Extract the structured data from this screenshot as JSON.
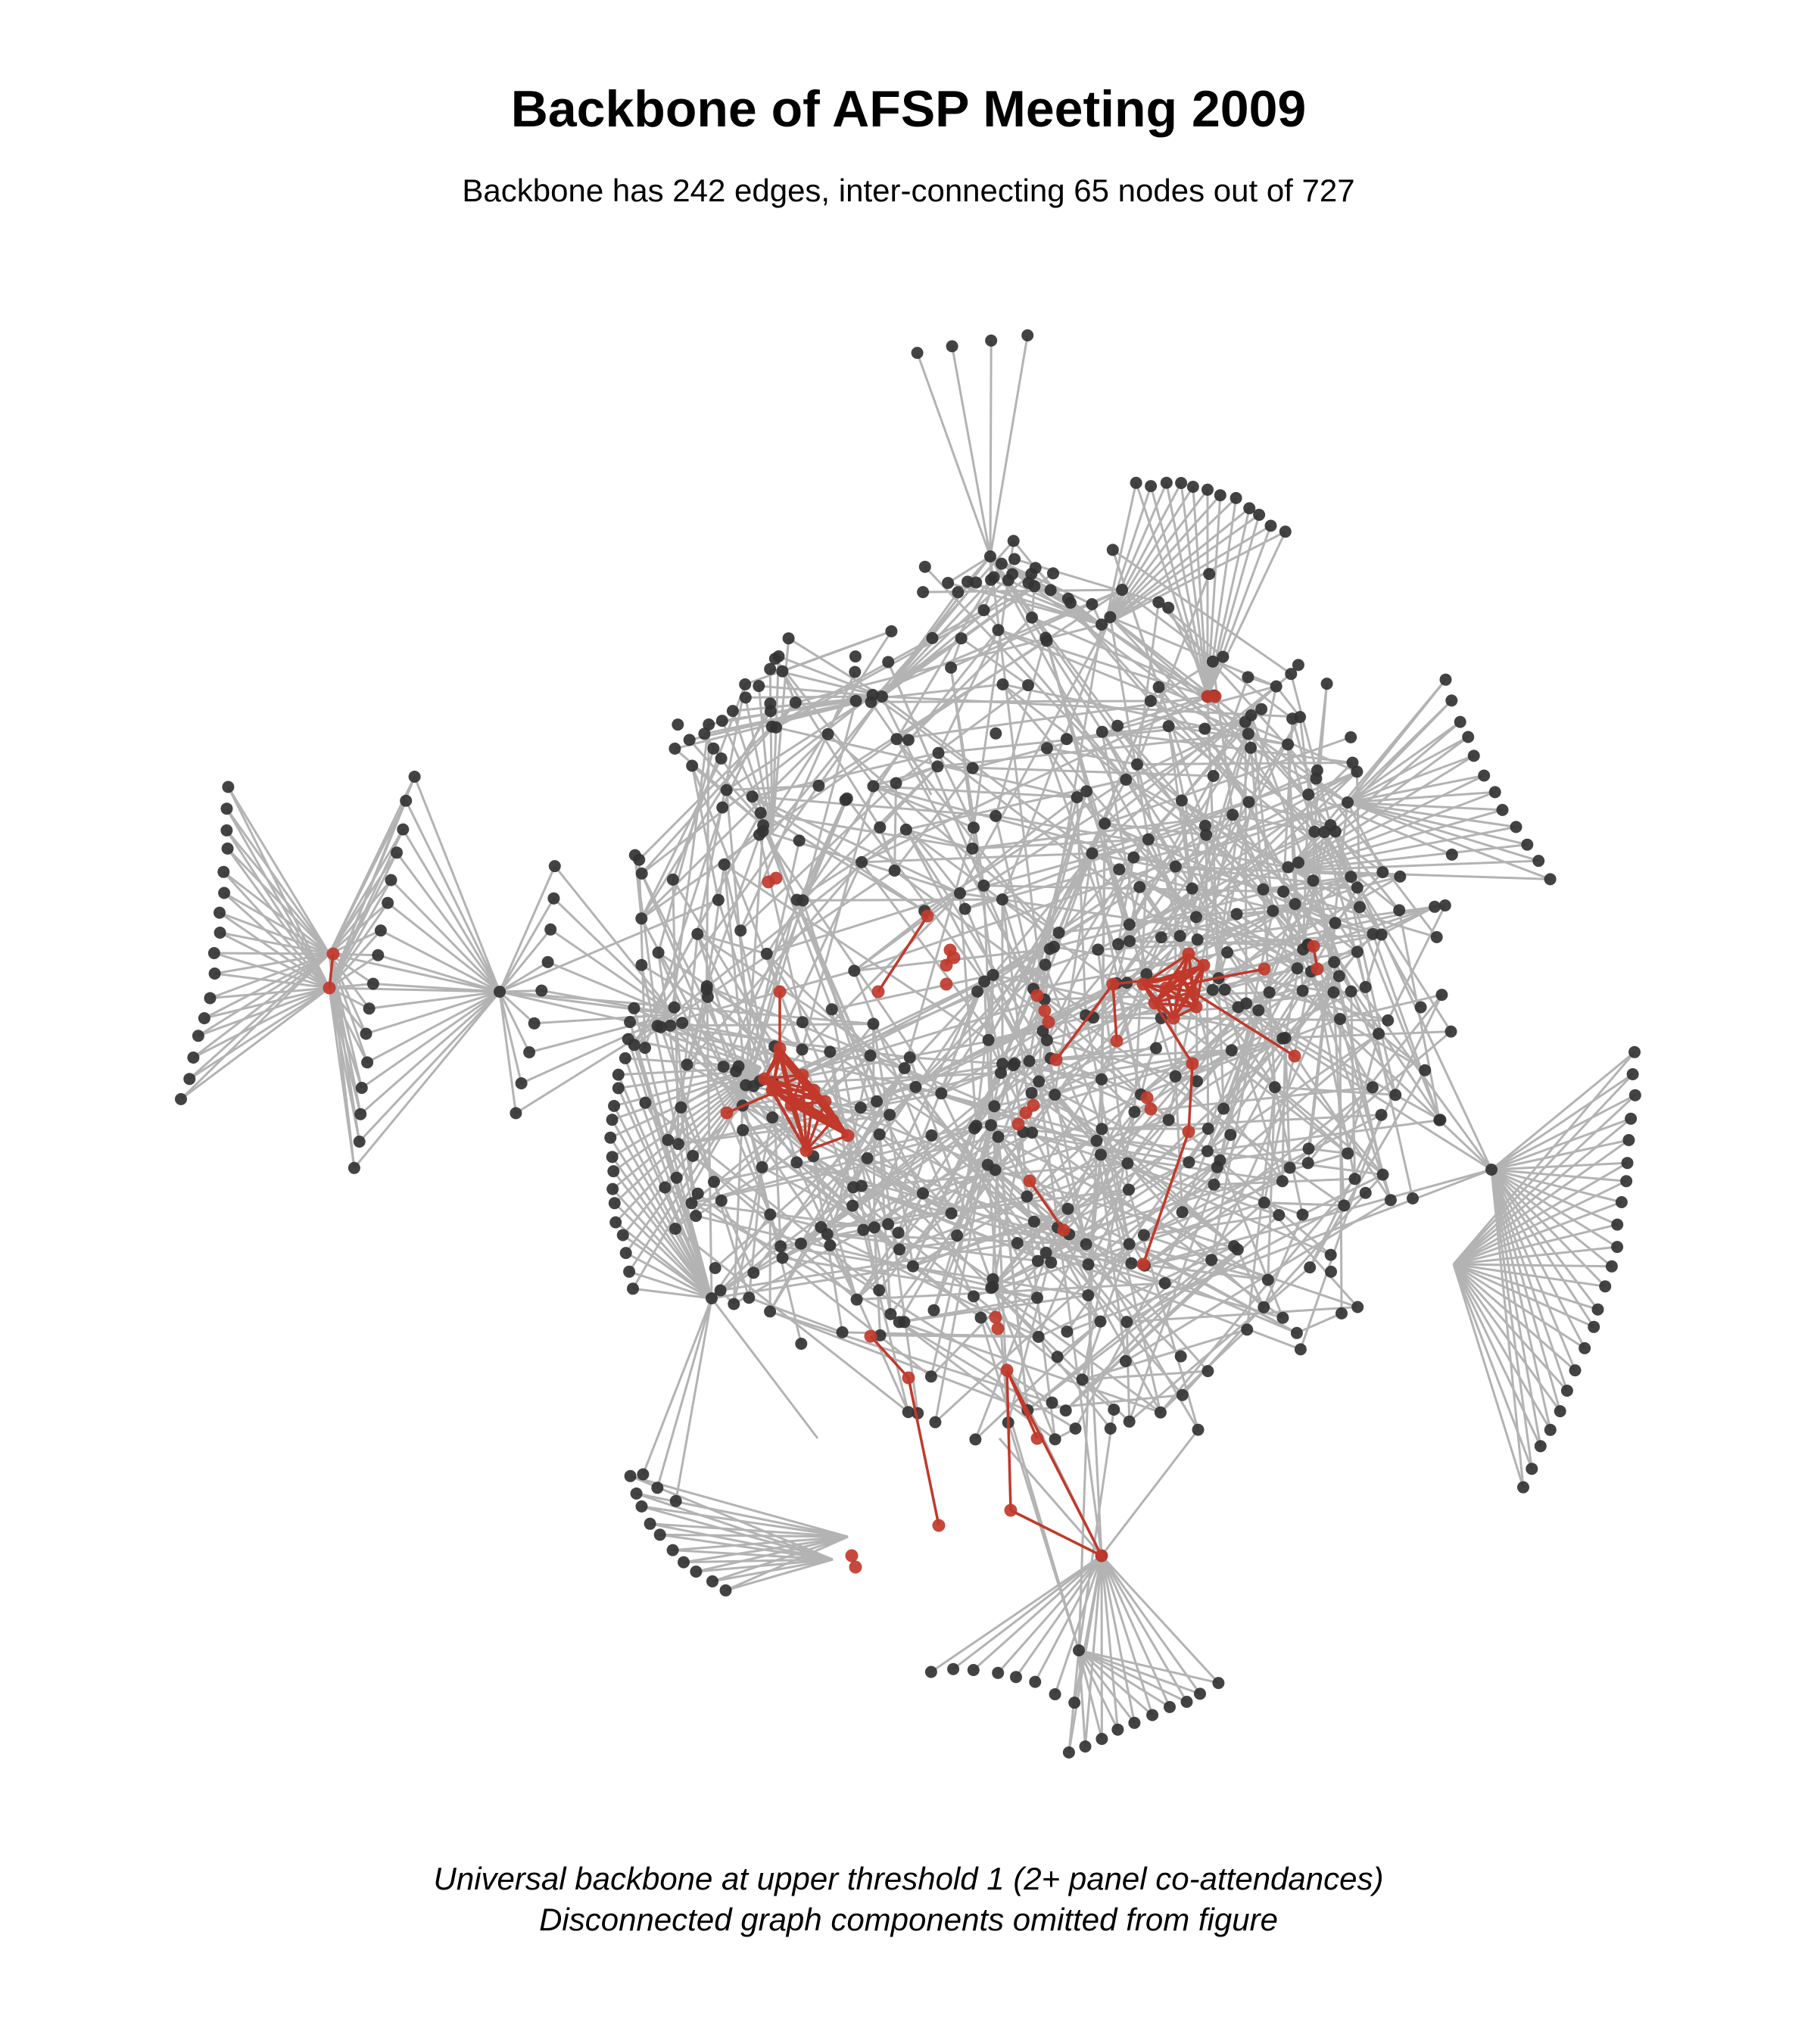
{
  "title": "Backbone of AFSP Meeting 2009",
  "subtitle": "Backbone has 242 edges, inter-connecting 65 nodes out of 727",
  "caption": {
    "line1": "Universal backbone at upper threshold 1 (2+ panel co-attendances)",
    "line2": "Disconnected graph components omitted from figure"
  },
  "colors": {
    "background": "#ffffff",
    "edge": "#b3b3b3",
    "node": "#333333",
    "backbone": "#c0392b"
  },
  "icons": {
    "node": "filled-circle",
    "edge": "straight-line"
  }
}
